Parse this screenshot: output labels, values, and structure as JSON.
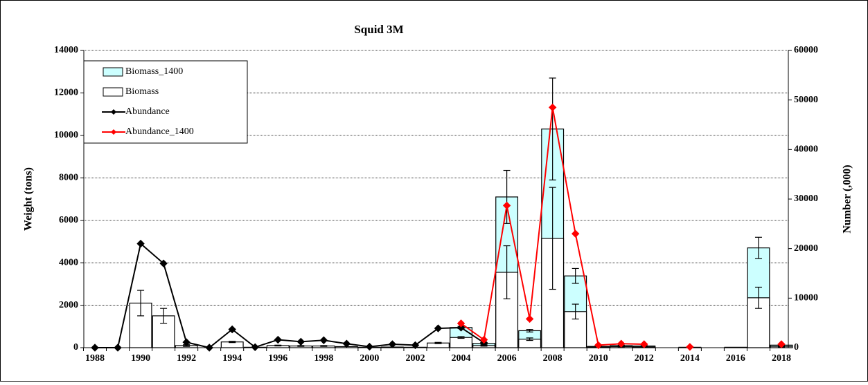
{
  "chart_data": {
    "type": "bar-line",
    "title": "Squid 3M",
    "y_label": "Weight (tons)",
    "y2_label": "Number (,000)",
    "categories": [
      "1988",
      null,
      "1990",
      null,
      "1992",
      null,
      "1994",
      null,
      "1996",
      null,
      "1998",
      null,
      "2000",
      null,
      "2002",
      null,
      "2004",
      null,
      "2006",
      null,
      "2008",
      null,
      "2010",
      null,
      "2012",
      null,
      "2014",
      null,
      "2016",
      null,
      "2018"
    ],
    "ylim": [
      0,
      14000
    ],
    "yticks": [
      0,
      2000,
      4000,
      6000,
      8000,
      10000,
      12000,
      14000
    ],
    "y2lim": [
      0,
      60000
    ],
    "y2ticks": [
      0,
      10000,
      20000,
      30000,
      40000,
      50000,
      60000
    ],
    "grid": true,
    "legend": "upper left",
    "series": [
      {
        "name": "Biomass_1400",
        "type": "bar",
        "color": "#ccffff",
        "values": [
          null,
          null,
          null,
          null,
          null,
          null,
          null,
          null,
          null,
          null,
          null,
          null,
          null,
          null,
          null,
          null,
          950,
          200,
          7100,
          800,
          10300,
          3380,
          60,
          100,
          80,
          null,
          20,
          null,
          20,
          4700,
          120
        ],
        "errors": [
          null,
          null,
          null,
          null,
          null,
          null,
          null,
          null,
          null,
          null,
          null,
          null,
          null,
          null,
          null,
          null,
          50,
          30,
          1250,
          60,
          2400,
          350,
          20,
          20,
          20,
          null,
          null,
          null,
          null,
          500,
          30
        ]
      },
      {
        "name": "Biomass",
        "type": "bar",
        "color": "#ffffff",
        "values": [
          0,
          0,
          2100,
          1500,
          100,
          0,
          270,
          20,
          100,
          80,
          80,
          50,
          20,
          30,
          20,
          220,
          480,
          100,
          3550,
          400,
          5150,
          1700,
          30,
          50,
          40,
          null,
          10,
          null,
          10,
          2350,
          60
        ],
        "errors": [
          null,
          null,
          600,
          350,
          40,
          null,
          30,
          null,
          20,
          20,
          20,
          null,
          null,
          null,
          null,
          30,
          40,
          30,
          1250,
          60,
          2400,
          350,
          10,
          10,
          10,
          null,
          null,
          null,
          null,
          500,
          30
        ]
      },
      {
        "name": "Abundance",
        "type": "line",
        "axis": "y2",
        "color": "#000000",
        "values": [
          0,
          0,
          21000,
          17000,
          1100,
          0,
          3700,
          100,
          1600,
          1200,
          1500,
          800,
          200,
          700,
          500,
          3900,
          4050,
          1000,
          null,
          null,
          null,
          null,
          null,
          null,
          null,
          null,
          null,
          null,
          null,
          null,
          null
        ]
      },
      {
        "name": "Abundance_1400",
        "type": "line",
        "axis": "y2",
        "color": "#ff0000",
        "values": [
          null,
          null,
          null,
          null,
          null,
          null,
          null,
          null,
          null,
          null,
          null,
          null,
          null,
          null,
          null,
          null,
          4900,
          1600,
          28700,
          5800,
          48500,
          23000,
          500,
          800,
          700,
          null,
          150,
          null,
          null,
          null,
          700
        ]
      }
    ]
  }
}
